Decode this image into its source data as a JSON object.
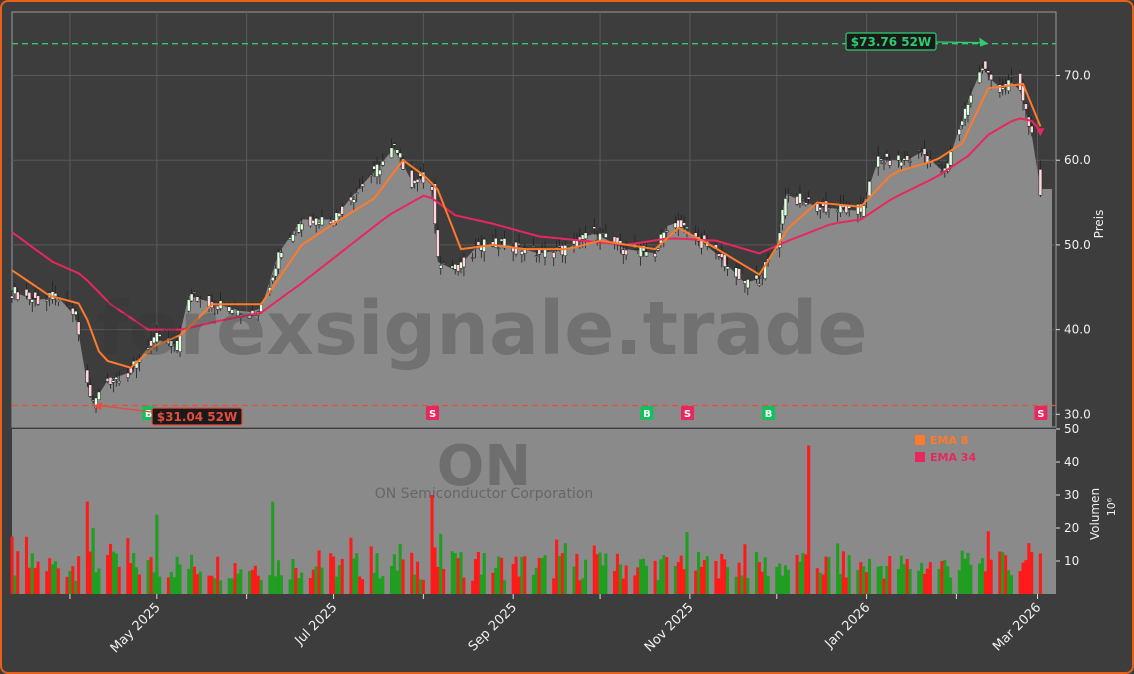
{
  "watermark": "forexsignale.trade",
  "ticker": "ON",
  "company": "ON Semiconductor Corporation",
  "colors": {
    "background": "#3d3d3d",
    "frame": "#e8611a",
    "area_fill": "#8a8a8a",
    "up": "#1f9e1f",
    "down": "#ff1a1a",
    "ema8": "#ff7a2a",
    "ema34": "#e8275f",
    "high_line": "#2ecc71",
    "low_line": "#e74c3c",
    "signal_buy": "#14c05a",
    "signal_sell": "#e8275f"
  },
  "chart_data": {
    "type": "candlestick",
    "y_label": "Preis",
    "y_ticks": [
      "30.0",
      "40.0",
      "50.0",
      "60.0",
      "70.0"
    ],
    "y_range": [
      28.5,
      77.5
    ],
    "x_ticks": [
      "May 2025",
      "Jul 2025",
      "Sep 2025",
      "Nov 2025",
      "Jan 2026",
      "Mar 2026"
    ],
    "x_range": [
      "2025-03-12",
      "2026-03-06"
    ],
    "price_keypoints": [
      [
        "2025-03-12",
        44.5
      ],
      [
        "2025-03-20",
        43.5
      ],
      [
        "2025-03-28",
        43.8
      ],
      [
        "2025-04-03",
        41.5
      ],
      [
        "2025-04-07",
        33.5
      ],
      [
        "2025-04-09",
        31.3
      ],
      [
        "2025-04-14",
        34.0
      ],
      [
        "2025-04-22",
        35.0
      ],
      [
        "2025-04-30",
        39.0
      ],
      [
        "2025-05-08",
        38.0
      ],
      [
        "2025-05-12",
        44.0
      ],
      [
        "2025-05-22",
        43.0
      ],
      [
        "2025-06-01",
        42.0
      ],
      [
        "2025-06-06",
        42.5
      ],
      [
        "2025-06-12",
        49.0
      ],
      [
        "2025-06-20",
        53.0
      ],
      [
        "2025-07-01",
        53.0
      ],
      [
        "2025-07-08",
        56.0
      ],
      [
        "2025-07-16",
        59.0
      ],
      [
        "2025-07-22",
        61.5
      ],
      [
        "2025-07-28",
        57.5
      ],
      [
        "2025-08-01",
        58.0
      ],
      [
        "2025-08-04",
        57.0
      ],
      [
        "2025-08-06",
        48.0
      ],
      [
        "2025-08-12",
        47.0
      ],
      [
        "2025-08-20",
        50.0
      ],
      [
        "2025-08-30",
        50.0
      ],
      [
        "2025-09-10",
        49.0
      ],
      [
        "2025-09-20",
        49.5
      ],
      [
        "2025-09-28",
        51.5
      ],
      [
        "2025-10-10",
        49.5
      ],
      [
        "2025-10-20",
        49.0
      ],
      [
        "2025-10-25",
        53.0
      ],
      [
        "2025-11-01",
        51.5
      ],
      [
        "2025-11-10",
        49.0
      ],
      [
        "2025-11-20",
        45.5
      ],
      [
        "2025-11-25",
        46.0
      ],
      [
        "2025-12-01",
        50.0
      ],
      [
        "2025-12-04",
        56.0
      ],
      [
        "2025-12-15",
        54.5
      ],
      [
        "2025-12-30",
        54.0
      ],
      [
        "2026-01-05",
        60.0
      ],
      [
        "2026-01-15",
        60.0
      ],
      [
        "2026-01-20",
        61.0
      ],
      [
        "2026-01-28",
        58.5
      ],
      [
        "2026-02-05",
        67.0
      ],
      [
        "2026-02-10",
        71.0
      ],
      [
        "2026-02-15",
        68.5
      ],
      [
        "2026-02-22",
        69.5
      ],
      [
        "2026-02-27",
        63.0
      ],
      [
        "2026-03-02",
        56.6
      ]
    ],
    "ema8_keypoints": [
      [
        "2025-03-12",
        47.0
      ],
      [
        "2025-03-25",
        44.0
      ],
      [
        "2025-04-05",
        43.0
      ],
      [
        "2025-04-12",
        36.5
      ],
      [
        "2025-04-22",
        35.5
      ],
      [
        "2025-04-30",
        38.0
      ],
      [
        "2025-05-10",
        39.5
      ],
      [
        "2025-05-20",
        43.0
      ],
      [
        "2025-06-06",
        43.0
      ],
      [
        "2025-06-20",
        50.0
      ],
      [
        "2025-07-01",
        52.5
      ],
      [
        "2025-07-15",
        55.5
      ],
      [
        "2025-07-25",
        60.0
      ],
      [
        "2025-08-02",
        58.0
      ],
      [
        "2025-08-06",
        56.5
      ],
      [
        "2025-08-14",
        49.5
      ],
      [
        "2025-08-25",
        50.0
      ],
      [
        "2025-09-05",
        49.5
      ],
      [
        "2025-09-20",
        49.5
      ],
      [
        "2025-10-01",
        50.5
      ],
      [
        "2025-10-20",
        49.5
      ],
      [
        "2025-10-28",
        52.0
      ],
      [
        "2025-11-08",
        50.0
      ],
      [
        "2025-11-25",
        46.5
      ],
      [
        "2025-12-05",
        52.0
      ],
      [
        "2025-12-15",
        55.0
      ],
      [
        "2025-12-30",
        54.5
      ],
      [
        "2026-01-10",
        58.5
      ],
      [
        "2026-01-25",
        60.0
      ],
      [
        "2026-02-03",
        62.0
      ],
      [
        "2026-02-12",
        68.5
      ],
      [
        "2026-02-24",
        69.0
      ],
      [
        "2026-03-02",
        64.0
      ]
    ],
    "ema34_keypoints": [
      [
        "2025-03-12",
        51.5
      ],
      [
        "2025-03-26",
        48.0
      ],
      [
        "2025-04-05",
        46.5
      ],
      [
        "2025-04-15",
        43.0
      ],
      [
        "2025-04-28",
        40.0
      ],
      [
        "2025-05-10",
        40.0
      ],
      [
        "2025-05-22",
        41.0
      ],
      [
        "2025-06-06",
        42.0
      ],
      [
        "2025-06-20",
        45.5
      ],
      [
        "2025-07-05",
        49.5
      ],
      [
        "2025-07-20",
        53.5
      ],
      [
        "2025-08-02",
        56.0
      ],
      [
        "2025-08-12",
        53.5
      ],
      [
        "2025-08-25",
        52.5
      ],
      [
        "2025-09-10",
        51.0
      ],
      [
        "2025-09-25",
        50.5
      ],
      [
        "2025-10-10",
        50.0
      ],
      [
        "2025-10-25",
        50.8
      ],
      [
        "2025-11-10",
        50.5
      ],
      [
        "2025-11-25",
        49.0
      ],
      [
        "2025-12-05",
        50.5
      ],
      [
        "2025-12-20",
        52.5
      ],
      [
        "2025-12-30",
        53.0
      ],
      [
        "2026-01-10",
        55.5
      ],
      [
        "2026-01-25",
        58.0
      ],
      [
        "2026-02-05",
        60.5
      ],
      [
        "2026-02-12",
        63.0
      ],
      [
        "2026-02-22",
        65.0
      ],
      [
        "2026-03-01",
        64.5
      ],
      [
        "2026-03-02",
        63.5
      ]
    ],
    "high_52w": {
      "label": "$73.76 52W",
      "value": 73.76,
      "date": "2026-02-12"
    },
    "low_52w": {
      "label": "$31.04 52W",
      "value": 31.04,
      "date": "2025-04-09"
    },
    "signals": [
      {
        "type": "B",
        "date": "2025-04-28"
      },
      {
        "type": "S",
        "date": "2025-08-04"
      },
      {
        "type": "B",
        "date": "2025-10-17"
      },
      {
        "type": "S",
        "date": "2025-10-31"
      },
      {
        "type": "B",
        "date": "2025-11-28"
      },
      {
        "type": "S",
        "date": "2026-03-02"
      }
    ],
    "legend": [
      {
        "label": "EMA 8",
        "color": "#ff7a2a"
      },
      {
        "label": "EMA 34",
        "color": "#e8275f"
      }
    ],
    "volume": {
      "y_label": "Volumen",
      "unit": "10⁶",
      "y_ticks": [
        "10",
        "20",
        "30",
        "40",
        "50"
      ],
      "y_range": [
        0,
        50
      ],
      "spikes": [
        [
          "2025-04-07",
          28
        ],
        [
          "2025-04-09",
          20
        ],
        [
          "2025-05-01",
          24
        ],
        [
          "2025-06-10",
          28
        ],
        [
          "2025-08-04",
          30
        ],
        [
          "2025-12-12",
          45
        ],
        [
          "2026-02-12",
          19
        ]
      ]
    }
  }
}
